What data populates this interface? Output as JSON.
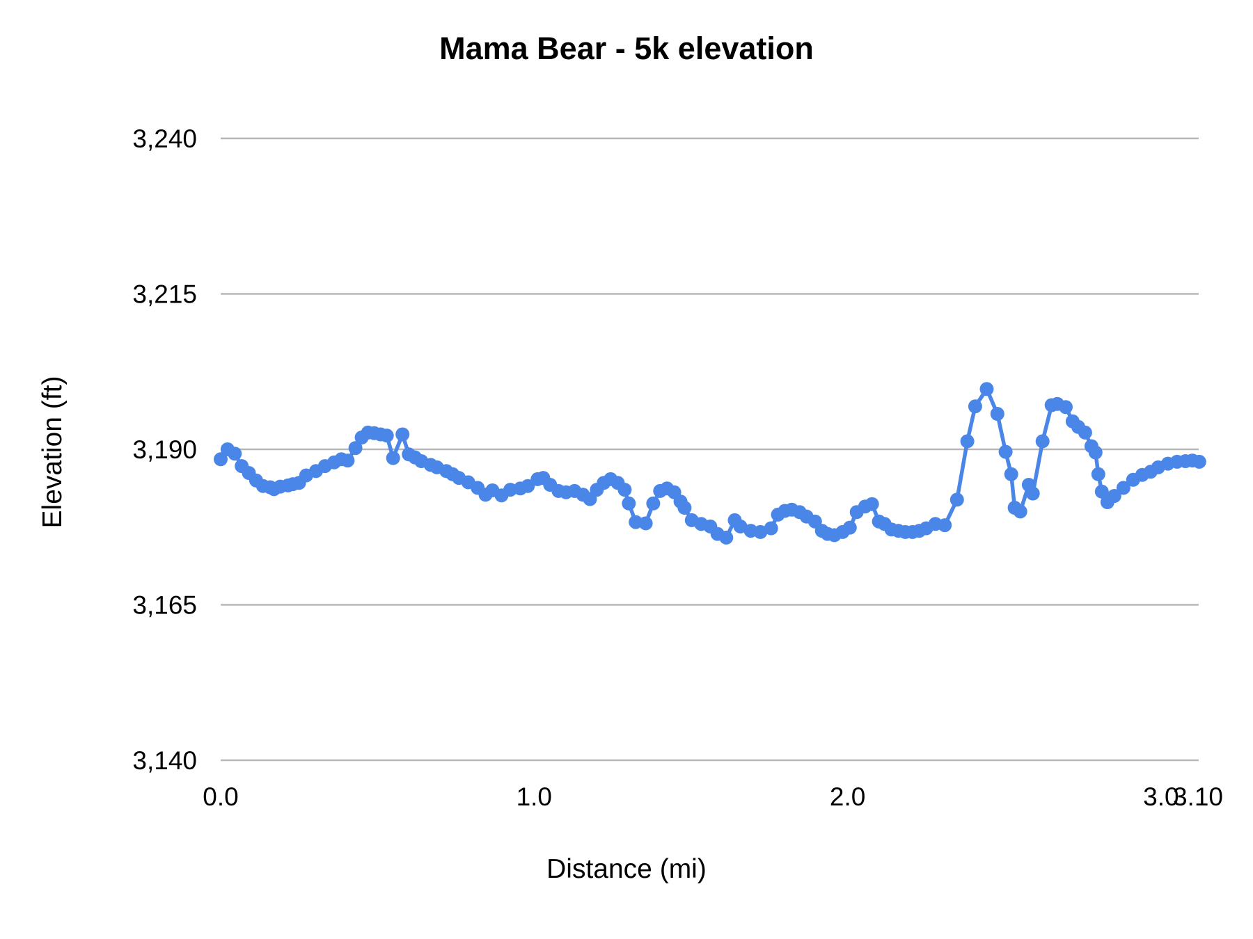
{
  "chart_data": {
    "type": "line",
    "title": "Mama Bear - 5k elevation",
    "xlabel": "Distance (mi)",
    "ylabel": "Elevation (ft)",
    "ylim": [
      3140,
      3240
    ],
    "xlim": [
      0,
      3.12
    ],
    "grid": "horizontal-only",
    "legend": "none",
    "colors": {
      "series": "#4a86e8",
      "gridline": "#b7b7b7",
      "text": "#000000",
      "background": "#ffffff"
    },
    "y_ticks": [
      {
        "value": 3140,
        "label": "3,140"
      },
      {
        "value": 3165,
        "label": "3,165"
      },
      {
        "value": 3190,
        "label": "3,190"
      },
      {
        "value": 3215,
        "label": "3,215"
      },
      {
        "value": 3240,
        "label": "3,240"
      }
    ],
    "x_ticks": [
      {
        "value": 0.0,
        "label": "0.0"
      },
      {
        "value": 1.0,
        "label": "1.0"
      },
      {
        "value": 2.0,
        "label": "2.0"
      },
      {
        "value": 3.0,
        "label": "3.0"
      }
    ],
    "x_max_label": "3.10",
    "series": [
      {
        "name": "elevation",
        "color": "#4a86e8",
        "points": [
          [
            0.0,
            3188.4
          ],
          [
            0.022,
            3190.0
          ],
          [
            0.045,
            3189.3
          ],
          [
            0.067,
            3187.3
          ],
          [
            0.09,
            3186.2
          ],
          [
            0.113,
            3185.0
          ],
          [
            0.135,
            3184.1
          ],
          [
            0.158,
            3183.9
          ],
          [
            0.17,
            3183.6
          ],
          [
            0.19,
            3184.0
          ],
          [
            0.215,
            3184.2
          ],
          [
            0.23,
            3184.4
          ],
          [
            0.25,
            3184.6
          ],
          [
            0.273,
            3185.8
          ],
          [
            0.304,
            3186.5
          ],
          [
            0.333,
            3187.3
          ],
          [
            0.362,
            3187.9
          ],
          [
            0.385,
            3188.4
          ],
          [
            0.405,
            3188.2
          ],
          [
            0.43,
            3190.2
          ],
          [
            0.45,
            3191.9
          ],
          [
            0.47,
            3192.7
          ],
          [
            0.49,
            3192.6
          ],
          [
            0.51,
            3192.4
          ],
          [
            0.53,
            3192.2
          ],
          [
            0.55,
            3188.6
          ],
          [
            0.58,
            3192.4
          ],
          [
            0.6,
            3189.2
          ],
          [
            0.62,
            3188.7
          ],
          [
            0.64,
            3188.1
          ],
          [
            0.67,
            3187.5
          ],
          [
            0.69,
            3187.1
          ],
          [
            0.72,
            3186.5
          ],
          [
            0.74,
            3186.0
          ],
          [
            0.76,
            3185.4
          ],
          [
            0.79,
            3184.7
          ],
          [
            0.82,
            3183.8
          ],
          [
            0.845,
            3182.7
          ],
          [
            0.867,
            3183.4
          ],
          [
            0.896,
            3182.6
          ],
          [
            0.924,
            3183.5
          ],
          [
            0.956,
            3183.7
          ],
          [
            0.98,
            3184.1
          ],
          [
            1.011,
            3185.2
          ],
          [
            1.029,
            3185.4
          ],
          [
            1.051,
            3184.3
          ],
          [
            1.078,
            3183.3
          ],
          [
            1.102,
            3183.1
          ],
          [
            1.129,
            3183.3
          ],
          [
            1.156,
            3182.7
          ],
          [
            1.178,
            3182.0
          ],
          [
            1.2,
            3183.5
          ],
          [
            1.222,
            3184.6
          ],
          [
            1.244,
            3185.2
          ],
          [
            1.267,
            3184.6
          ],
          [
            1.289,
            3183.5
          ],
          [
            1.302,
            3181.3
          ],
          [
            1.324,
            3178.3
          ],
          [
            1.356,
            3178.1
          ],
          [
            1.38,
            3181.3
          ],
          [
            1.402,
            3183.3
          ],
          [
            1.424,
            3183.7
          ],
          [
            1.447,
            3183.1
          ],
          [
            1.467,
            3181.6
          ],
          [
            1.48,
            3180.6
          ],
          [
            1.503,
            3178.6
          ],
          [
            1.533,
            3178.0
          ],
          [
            1.562,
            3177.6
          ],
          [
            1.585,
            3176.4
          ],
          [
            1.613,
            3175.8
          ],
          [
            1.64,
            3178.6
          ],
          [
            1.658,
            3177.6
          ],
          [
            1.691,
            3176.9
          ],
          [
            1.722,
            3176.7
          ],
          [
            1.756,
            3177.3
          ],
          [
            1.778,
            3179.5
          ],
          [
            1.8,
            3180.1
          ],
          [
            1.822,
            3180.3
          ],
          [
            1.847,
            3179.9
          ],
          [
            1.869,
            3179.2
          ],
          [
            1.896,
            3178.4
          ],
          [
            1.918,
            3176.9
          ],
          [
            1.936,
            3176.4
          ],
          [
            1.958,
            3176.2
          ],
          [
            1.984,
            3176.7
          ],
          [
            2.007,
            3177.4
          ],
          [
            2.029,
            3179.9
          ],
          [
            2.056,
            3180.8
          ],
          [
            2.078,
            3181.2
          ],
          [
            2.1,
            3178.4
          ],
          [
            2.118,
            3178.0
          ],
          [
            2.14,
            3177.1
          ],
          [
            2.162,
            3176.9
          ],
          [
            2.184,
            3176.7
          ],
          [
            2.207,
            3176.7
          ],
          [
            2.229,
            3176.9
          ],
          [
            2.251,
            3177.3
          ],
          [
            2.28,
            3178.0
          ],
          [
            2.31,
            3177.8
          ],
          [
            2.349,
            3181.9
          ],
          [
            2.382,
            3191.3
          ],
          [
            2.407,
            3196.9
          ],
          [
            2.444,
            3199.7
          ],
          [
            2.478,
            3195.7
          ],
          [
            2.504,
            3189.6
          ],
          [
            2.522,
            3186.0
          ],
          [
            2.533,
            3180.6
          ],
          [
            2.551,
            3180.0
          ],
          [
            2.578,
            3184.3
          ],
          [
            2.591,
            3182.9
          ],
          [
            2.622,
            3191.3
          ],
          [
            2.651,
            3197.1
          ],
          [
            2.669,
            3197.3
          ],
          [
            2.696,
            3196.8
          ],
          [
            2.718,
            3194.5
          ],
          [
            2.736,
            3193.6
          ],
          [
            2.758,
            3192.7
          ],
          [
            2.778,
            3190.5
          ],
          [
            2.791,
            3189.5
          ],
          [
            2.8,
            3186.0
          ],
          [
            2.811,
            3183.2
          ],
          [
            2.829,
            3181.5
          ],
          [
            2.851,
            3182.5
          ],
          [
            2.88,
            3183.8
          ],
          [
            2.911,
            3185.1
          ],
          [
            2.94,
            3185.9
          ],
          [
            2.967,
            3186.4
          ],
          [
            2.991,
            3187.1
          ],
          [
            3.022,
            3187.7
          ],
          [
            3.051,
            3188.0
          ],
          [
            3.078,
            3188.1
          ],
          [
            3.1,
            3188.2
          ],
          [
            3.122,
            3188.0
          ]
        ]
      }
    ]
  }
}
